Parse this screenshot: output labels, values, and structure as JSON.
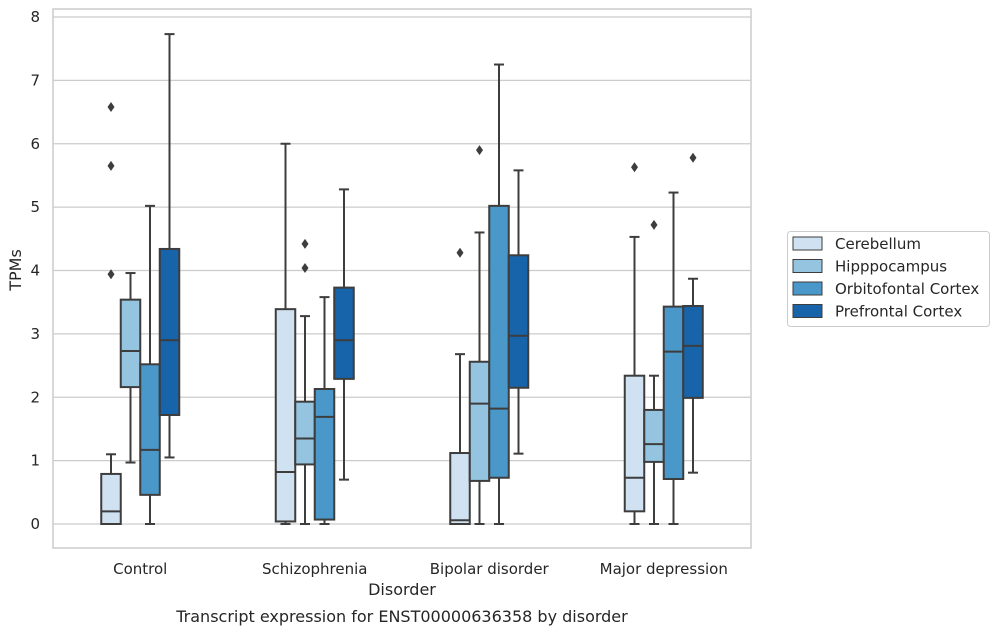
{
  "chart_data": {
    "type": "boxplot",
    "title": "",
    "caption": "Transcript expression for ENST00000636358 by disorder",
    "xlabel": "Disorder",
    "ylabel": "TPMs",
    "ylim": [
      -0.38,
      8.12
    ],
    "yticks": [
      0,
      1,
      2,
      3,
      4,
      5,
      6,
      7,
      8
    ],
    "grid": "horizontal",
    "legend_position": "right",
    "categories": [
      "Control",
      "Schizophrenia",
      "Bipolar disorder",
      "Major depression"
    ],
    "series": [
      {
        "name": "Cerebellum",
        "color": "#d0e1f2",
        "boxes": [
          {
            "whislo": 0,
            "q1": 0,
            "med": 0.2,
            "q3": 0.79,
            "whishi": 1.1,
            "fliers": [
              3.94,
              5.65,
              6.58
            ]
          },
          {
            "whislo": 0,
            "q1": 0.04,
            "med": 0.82,
            "q3": 3.39,
            "whishi": 6.0,
            "fliers": []
          },
          {
            "whislo": 0,
            "q1": 0,
            "med": 0.06,
            "q3": 1.12,
            "whishi": 2.68,
            "fliers": [
              4.28
            ]
          },
          {
            "whislo": 0,
            "q1": 0.2,
            "med": 0.73,
            "q3": 2.34,
            "whishi": 4.53,
            "fliers": [
              5.63
            ]
          }
        ]
      },
      {
        "name": "Hipppocampus",
        "color": "#94c4df",
        "boxes": [
          {
            "whislo": 0.97,
            "q1": 2.16,
            "med": 2.73,
            "q3": 3.54,
            "whishi": 3.96,
            "fliers": []
          },
          {
            "whislo": 0,
            "q1": 0.94,
            "med": 1.35,
            "q3": 1.93,
            "whishi": 3.28,
            "fliers": [
              4.04,
              4.42
            ]
          },
          {
            "whislo": 0,
            "q1": 0.68,
            "med": 1.9,
            "q3": 2.56,
            "whishi": 4.6,
            "fliers": [
              5.9
            ]
          },
          {
            "whislo": 0,
            "q1": 0.98,
            "med": 1.26,
            "q3": 1.8,
            "whishi": 2.34,
            "fliers": [
              4.72
            ]
          }
        ]
      },
      {
        "name": "Orbitofontal Cortex",
        "color": "#4a98c9",
        "boxes": [
          {
            "whislo": 0,
            "q1": 0.46,
            "med": 1.17,
            "q3": 2.52,
            "whishi": 5.02,
            "fliers": []
          },
          {
            "whislo": 0,
            "q1": 0.07,
            "med": 1.69,
            "q3": 2.13,
            "whishi": 3.58,
            "fliers": []
          },
          {
            "whislo": 0,
            "q1": 0.73,
            "med": 1.82,
            "q3": 5.02,
            "whishi": 7.25,
            "fliers": []
          },
          {
            "whislo": 0,
            "q1": 0.71,
            "med": 2.72,
            "q3": 3.43,
            "whishi": 5.23,
            "fliers": []
          }
        ]
      },
      {
        "name": "Prefrontal Cortex",
        "color": "#1764ab",
        "boxes": [
          {
            "whislo": 1.05,
            "q1": 1.72,
            "med": 2.9,
            "q3": 4.34,
            "whishi": 7.73,
            "fliers": []
          },
          {
            "whislo": 0.7,
            "q1": 2.29,
            "med": 2.9,
            "q3": 3.73,
            "whishi": 5.28,
            "fliers": []
          },
          {
            "whislo": 1.11,
            "q1": 2.15,
            "med": 2.97,
            "q3": 4.24,
            "whishi": 5.58,
            "fliers": []
          },
          {
            "whislo": 0.81,
            "q1": 1.99,
            "med": 2.81,
            "q3": 3.44,
            "whishi": 3.87,
            "fliers": [
              5.78
            ]
          }
        ]
      }
    ]
  }
}
